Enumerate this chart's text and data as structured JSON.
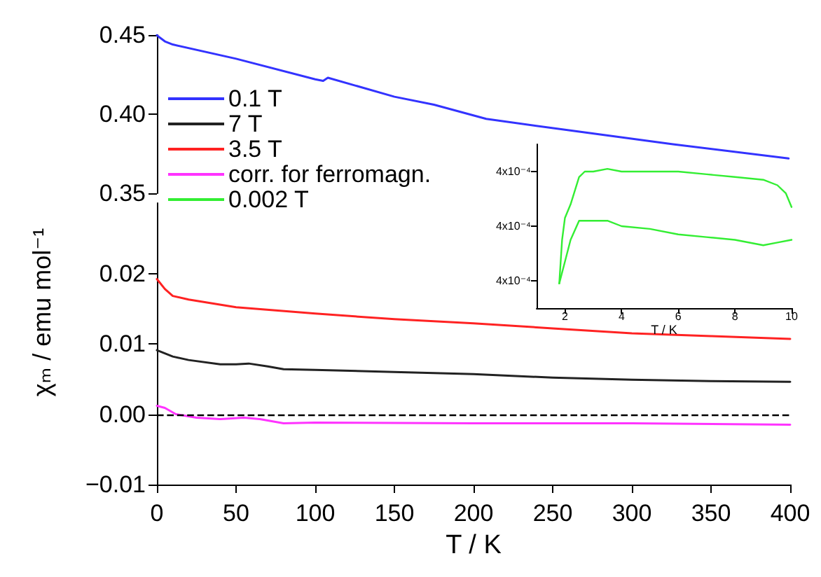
{
  "chart_data": [
    {
      "type": "line",
      "xlim": [
        0,
        400
      ],
      "xticks": [
        0,
        50,
        100,
        150,
        200,
        250,
        300,
        350,
        400
      ],
      "ylim": [
        0.35,
        0.45
      ],
      "yticks": [
        {
          "value": 0.35,
          "label": "0.35"
        },
        {
          "value": 0.4,
          "label": "0.40"
        },
        {
          "value": 0.45,
          "label": "0.45"
        }
      ],
      "tick_labels": "y",
      "grid": false,
      "legend": "top left",
      "series": [
        {
          "name": "0.1 T",
          "color": "#3333ff",
          "x": [
            0,
            1,
            5,
            10,
            50,
            100,
            105,
            108,
            150,
            175,
            208,
            266,
            326,
            399
          ],
          "values": [
            0.45,
            0.449,
            0.446,
            0.444,
            0.435,
            0.422,
            0.421,
            0.423,
            0.411,
            0.406,
            0.397,
            0.389,
            0.381,
            0.372
          ]
        }
      ]
    },
    {
      "type": "line",
      "xlabel": "T / K",
      "ylabel": "χₘ / emu mol⁻¹",
      "xlim": [
        0,
        400
      ],
      "xticks": [
        0,
        50,
        100,
        150,
        200,
        250,
        300,
        350,
        400
      ],
      "ylim": [
        -0.01,
        0.03
      ],
      "yticks": [
        {
          "value": -0.01,
          "label": "−0.01"
        },
        {
          "value": 0,
          "label": "0.00"
        },
        {
          "value": 0.01,
          "label": "0.01"
        },
        {
          "value": 0.02,
          "label": "0.02"
        }
      ],
      "grid": false,
      "legend": "top left",
      "ref_lines": [
        {
          "axis": "y",
          "value": 0,
          "color": "#000000",
          "line_style": "dashed"
        }
      ],
      "series": [
        {
          "name": "7 T",
          "color": "#222222",
          "x": [
            0,
            10,
            20,
            40,
            50,
            58,
            70,
            80,
            100,
            150,
            200,
            250,
            300,
            350,
            400
          ],
          "values": [
            0.0091,
            0.0082,
            0.0077,
            0.0071,
            0.0071,
            0.0072,
            0.0068,
            0.0064,
            0.0063,
            0.006,
            0.0057,
            0.0052,
            0.0049,
            0.0047,
            0.0046
          ]
        },
        {
          "name": "3.5 T",
          "color": "#ff2222",
          "x": [
            0,
            5,
            10,
            20,
            50,
            100,
            150,
            200,
            250,
            300,
            350,
            400
          ],
          "values": [
            0.0192,
            0.0178,
            0.0168,
            0.0163,
            0.0152,
            0.0143,
            0.0135,
            0.0129,
            0.0122,
            0.0115,
            0.0111,
            0.0107
          ]
        },
        {
          "name": "corr. for ferromagn.",
          "color": "#ff33ff",
          "x": [
            0,
            5,
            12,
            25,
            40,
            55,
            65,
            80,
            100,
            200,
            300,
            400
          ],
          "values": [
            0.0012,
            0.0009,
            0,
            -0.0005,
            -0.0007,
            -0.0005,
            -0.0007,
            -0.0013,
            -0.0012,
            -0.0013,
            -0.0013,
            -0.0015
          ]
        }
      ]
    },
    {
      "type": "line",
      "xlabel": "T / K",
      "xlim": [
        1,
        10
      ],
      "xticks": [
        2,
        4,
        6,
        8,
        10
      ],
      "ylim": [
        0.00037,
        0.00043
      ],
      "yticks": [
        {
          "value": 0.00038,
          "label": "4x10⁻⁴"
        },
        {
          "value": 0.0004,
          "label": "4x10⁻⁴"
        },
        {
          "value": 0.00042,
          "label": "4x10⁻⁴"
        }
      ],
      "grid": false,
      "legend": "top left",
      "series": [
        {
          "name": "0.002 T",
          "color": "#33ee33",
          "x": [
            1.8,
            1.9,
            2.0,
            2.2,
            2.5,
            2.7,
            3,
            3.5,
            4,
            5,
            6,
            7,
            8,
            9,
            9.5,
            9.8,
            10
          ],
          "values": [
            0.000379,
            0.000395,
            0.000403,
            0.000408,
            0.000418,
            0.00042,
            0.00042,
            0.000421,
            0.00042,
            0.00042,
            0.00042,
            0.000419,
            0.000418,
            0.000417,
            0.000415,
            0.000412,
            0.000407
          ]
        },
        {
          "color": "#33ee33",
          "x": [
            1.8,
            1.9,
            2.0,
            2.2,
            2.5,
            2.7,
            3,
            3.5,
            4,
            5,
            6,
            7,
            8,
            9,
            9.5,
            10
          ],
          "values": [
            0.000379,
            0.000383,
            0.000387,
            0.000395,
            0.000402,
            0.000402,
            0.000402,
            0.000402,
            0.0004,
            0.000399,
            0.000397,
            0.000396,
            0.000395,
            0.000393,
            0.000394,
            0.000395
          ]
        }
      ]
    }
  ]
}
